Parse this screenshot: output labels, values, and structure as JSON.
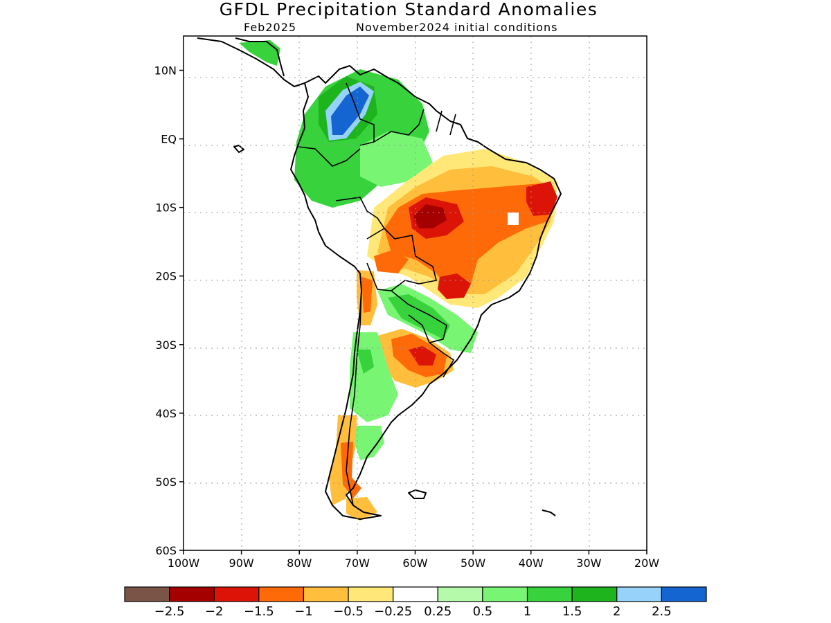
{
  "header": {
    "title": "GFDL Precipitation Standard Anomalies",
    "valid_month": "Feb2025",
    "init_label": "November2024 initial conditions"
  },
  "axes": {
    "lat_labels": [
      "10N",
      "EQ",
      "10S",
      "20S",
      "30S",
      "40S",
      "50S",
      "60S"
    ],
    "lat_values": [
      10,
      0,
      -10,
      -20,
      -30,
      -40,
      -50,
      -60
    ],
    "lon_labels": [
      "100W",
      "90W",
      "80W",
      "70W",
      "60W",
      "50W",
      "40W",
      "30W",
      "20W"
    ],
    "lon_values": [
      -100,
      -90,
      -80,
      -70,
      -60,
      -50,
      -40,
      -30,
      -20
    ],
    "lat_range": [
      -60,
      15
    ],
    "lon_range": [
      -100,
      -20
    ],
    "grid": "dotted"
  },
  "colorbar": {
    "colors": [
      "#7a5446",
      "#a50000",
      "#dc1408",
      "#ff6a08",
      "#ffbe3c",
      "#ffe878",
      "#ffffff",
      "#b4faaa",
      "#78f573",
      "#37d23c",
      "#1eb41e",
      "#96d2fa",
      "#1464d2"
    ],
    "labels": [
      "−2.5",
      "−2",
      "−1.5",
      "−1",
      "−0.5",
      "−0.25",
      "0.25",
      "0.5",
      "1",
      "1.5",
      "2",
      "2.5"
    ]
  }
}
